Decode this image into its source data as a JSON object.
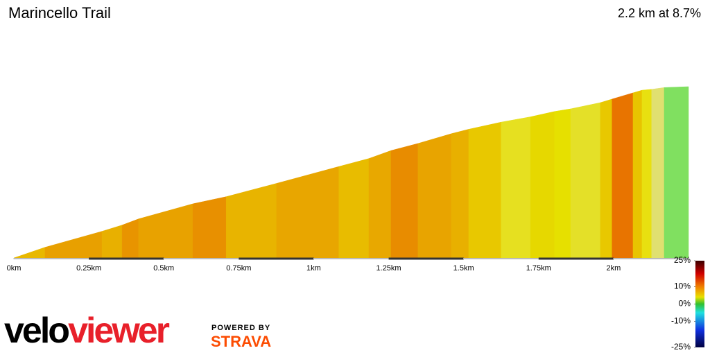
{
  "chart_data": {
    "type": "area",
    "title": "Marincello Trail",
    "subtitle": "2.2 km at 8.7%",
    "x": [
      0,
      0.104,
      0.294,
      0.361,
      0.416,
      0.597,
      0.708,
      0.876,
      1.084,
      1.184,
      1.258,
      1.348,
      1.459,
      1.517,
      1.625,
      1.723,
      1.803,
      1.857,
      1.956,
      1.995,
      2.065,
      2.095,
      2.127,
      2.169,
      2.25
    ],
    "values": [
      0,
      12,
      30,
      37,
      44,
      61,
      69,
      84,
      103,
      112,
      121,
      129,
      140,
      145,
      153,
      159,
      165,
      168,
      175,
      179,
      186,
      189,
      190,
      192,
      193
    ],
    "colors": [
      "#e8b800",
      "#e8a000",
      "#e8b000",
      "#e89400",
      "#e8a200",
      "#e89000",
      "#e8b400",
      "#e8a600",
      "#e8bc00",
      "#e8a800",
      "#e88c00",
      "#e8a400",
      "#e8b000",
      "#e8c800",
      "#e6e020",
      "#e6d800",
      "#e6e000",
      "#e4e028",
      "#e8c800",
      "#e87400",
      "#e8c400",
      "#e8e010",
      "#e0e070",
      "#80e060"
    ],
    "xlim": [
      0,
      2.25
    ],
    "ylim": [
      0,
      250
    ],
    "xticks": [
      {
        "value": 0,
        "label": "0km"
      },
      {
        "value": 0.25,
        "label": "0.25km"
      },
      {
        "value": 0.5,
        "label": "0.5km"
      },
      {
        "value": 0.75,
        "label": "0.75km"
      },
      {
        "value": 1,
        "label": "1km"
      },
      {
        "value": 1.25,
        "label": "1.25km"
      },
      {
        "value": 1.5,
        "label": "1.5km"
      },
      {
        "value": 1.75,
        "label": "1.75km"
      },
      {
        "value": 2,
        "label": "2km"
      }
    ],
    "colorbar": {
      "lim": [
        -25,
        25
      ],
      "ticks": [
        {
          "value": 25,
          "label": "25%"
        },
        {
          "value": 10,
          "label": "10%"
        },
        {
          "value": 0,
          "label": "0%"
        },
        {
          "value": -10,
          "label": "-10%"
        },
        {
          "value": -25,
          "label": "-25%"
        }
      ]
    },
    "branding": {
      "logo": [
        "velo",
        "viewer"
      ],
      "powered_by": "POWERED BY",
      "strava": "STRAVA"
    }
  }
}
